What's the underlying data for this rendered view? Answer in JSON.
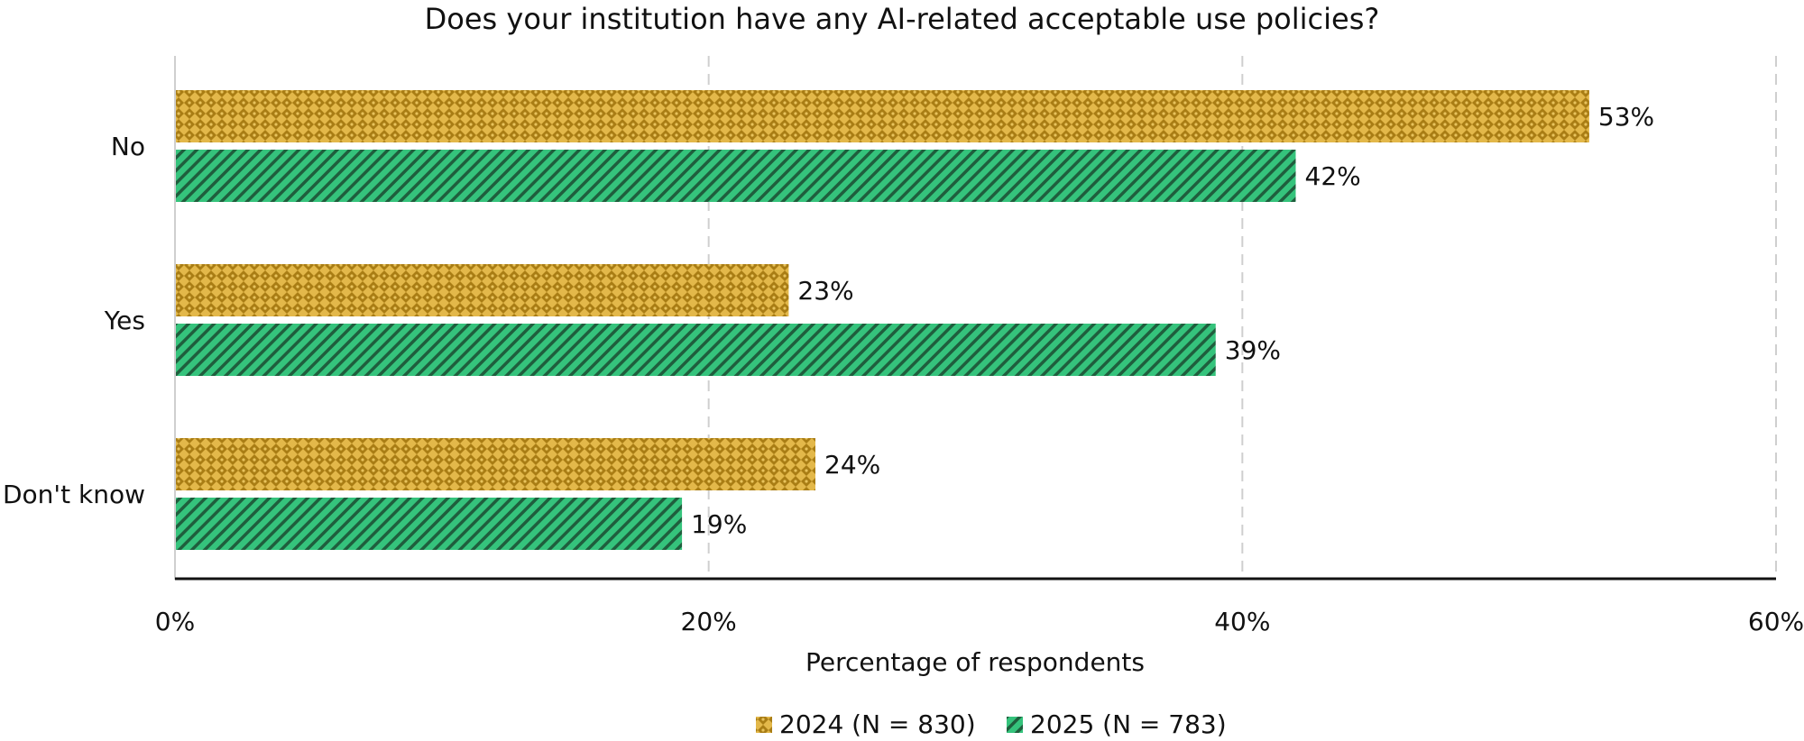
{
  "chart_data": {
    "type": "bar",
    "orientation": "horizontal",
    "title": "Does your institution have any AI-related acceptable use policies?",
    "xlabel": "Percentage of respondents",
    "ylabel": "",
    "categories": [
      "No",
      "Yes",
      "Don't know"
    ],
    "series": [
      {
        "name": "2024 (N = 830)",
        "values": [
          53,
          23,
          24
        ],
        "color": "#d4a63a",
        "pattern": "checker"
      },
      {
        "name": "2025 (N = 783)",
        "values": [
          42,
          39,
          19
        ],
        "color": "#2dbb72",
        "pattern": "diagonal-hatch"
      }
    ],
    "value_labels": [
      [
        "53%",
        "23%",
        "24%"
      ],
      [
        "42%",
        "39%",
        "19%"
      ]
    ],
    "xlim": [
      0,
      60
    ],
    "ticks": [
      0,
      20,
      40,
      60
    ],
    "tick_labels": [
      "0%",
      "20%",
      "40%",
      "60%"
    ],
    "grid": "vertical dashed",
    "legend_position": "bottom"
  }
}
